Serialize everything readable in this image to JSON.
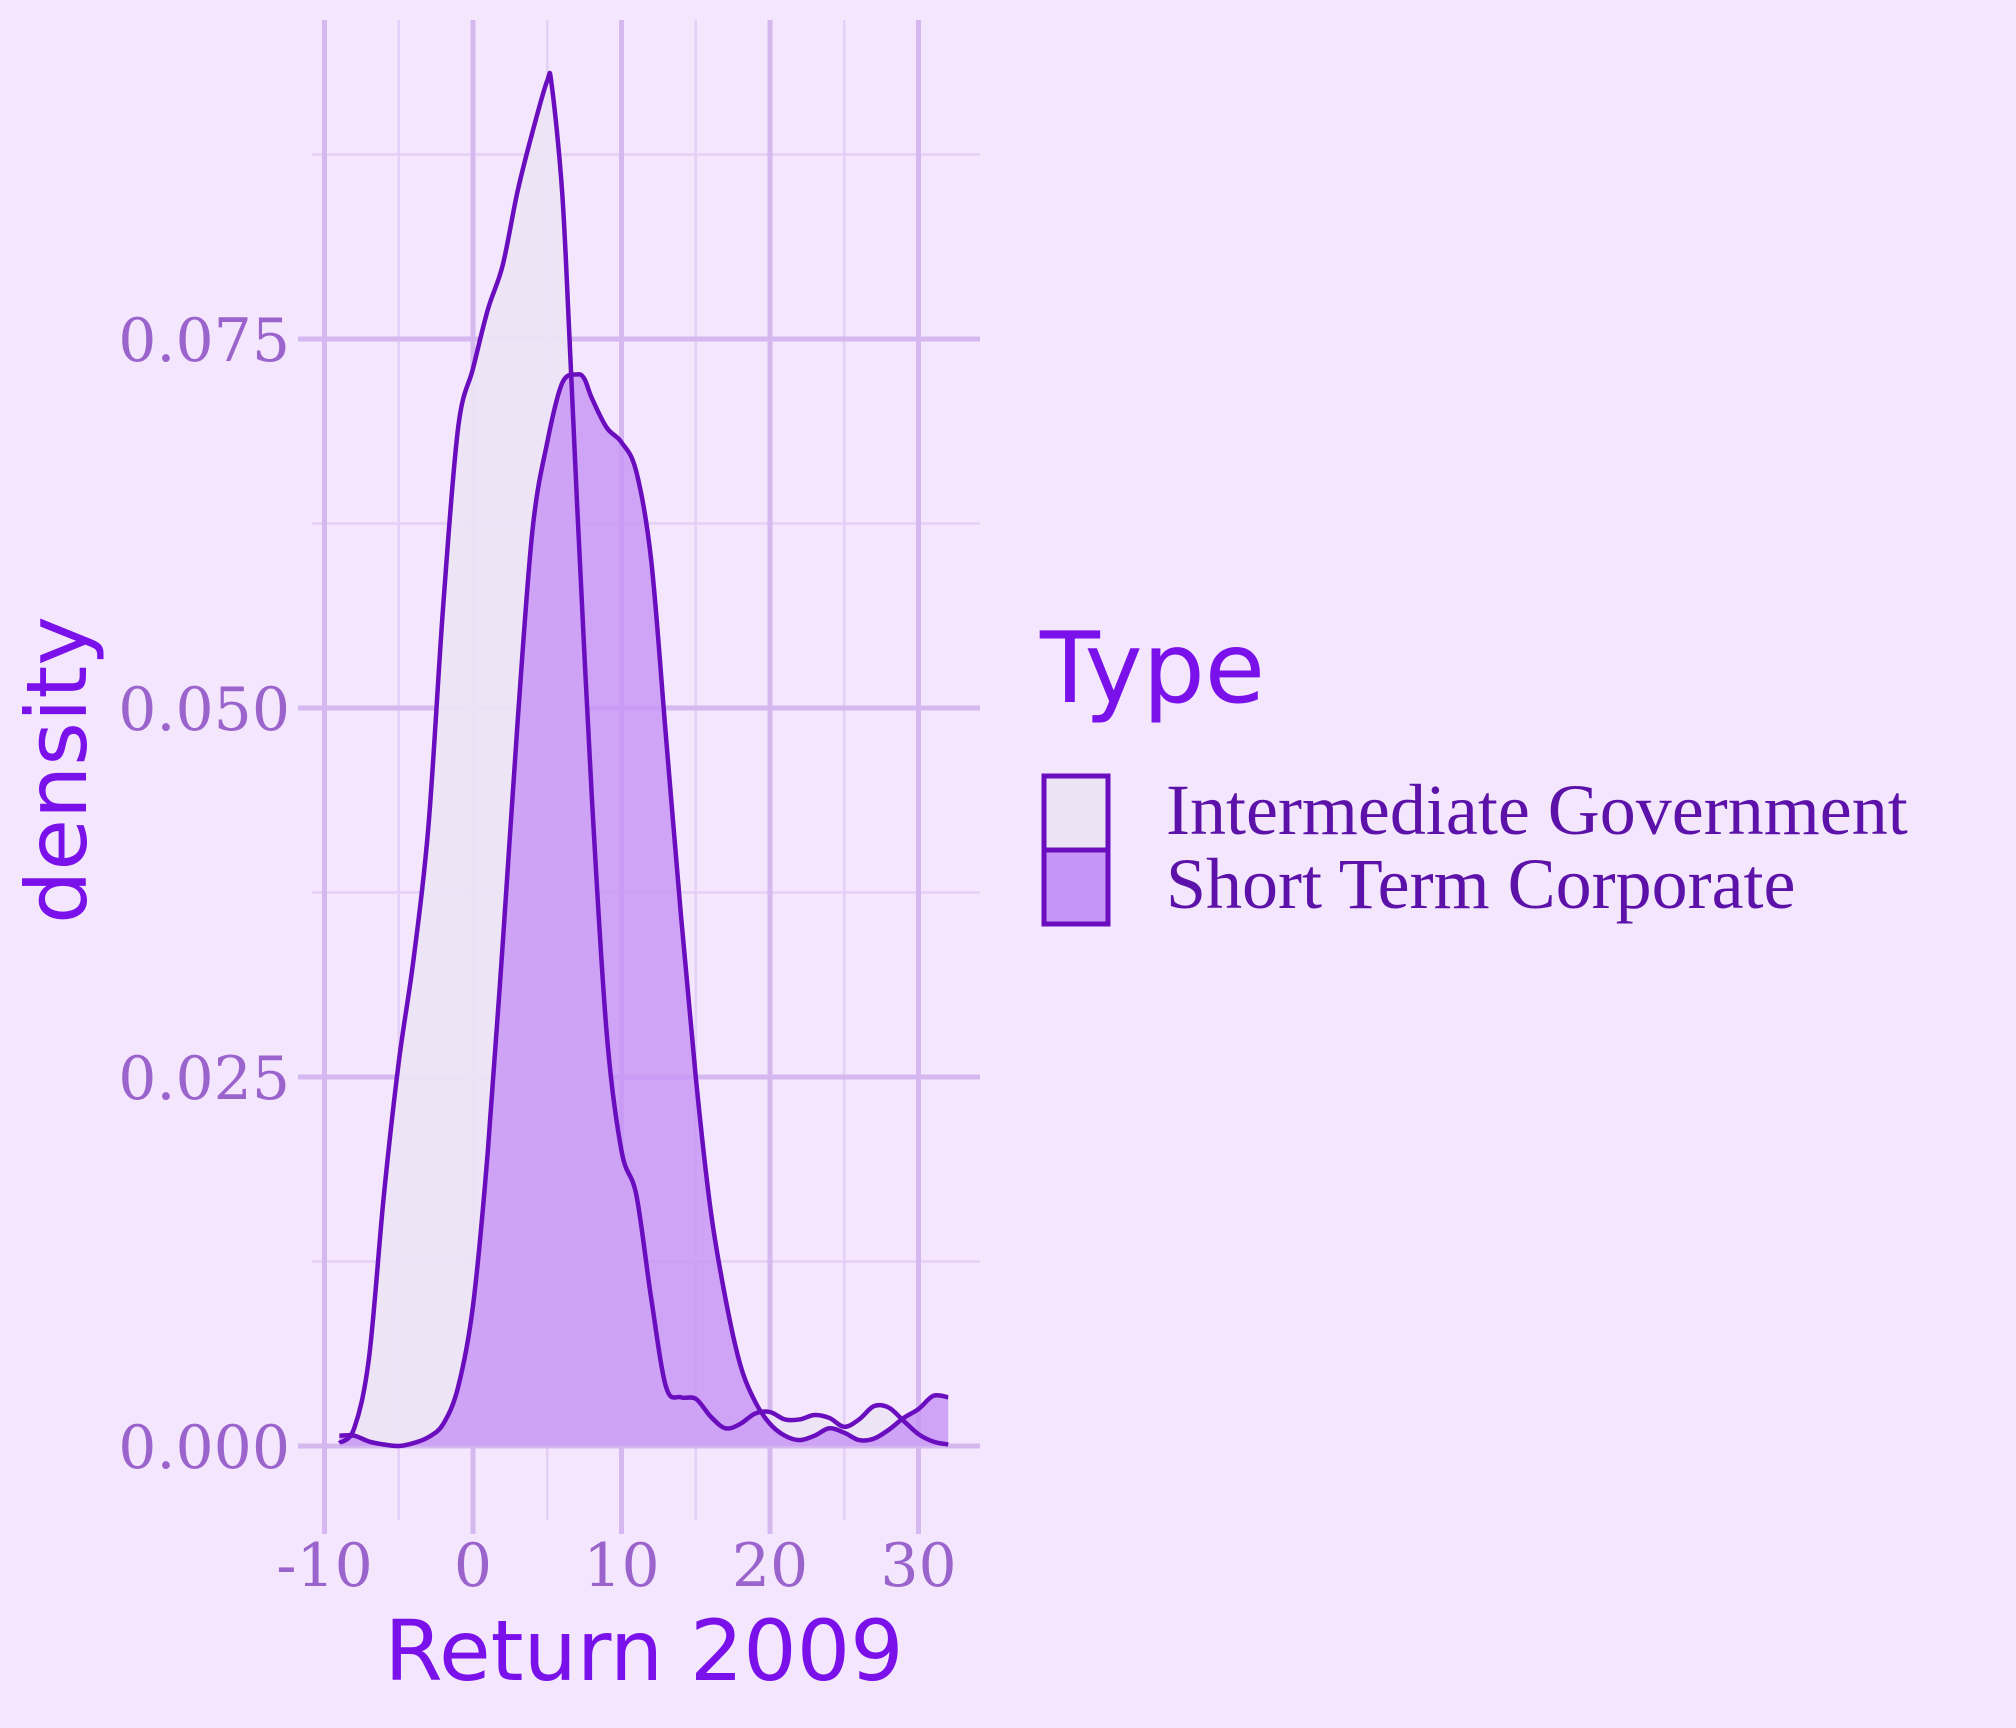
{
  "chart_data": {
    "type": "area",
    "title": "",
    "xlabel": "Return 2009",
    "ylabel": "density",
    "xlim": [
      -9,
      32
    ],
    "ylim": [
      0,
      0.095
    ],
    "x_ticks": [
      -10,
      0,
      10,
      20,
      30
    ],
    "x_tick_labels": [
      "-10",
      "0",
      "10",
      "20",
      "30"
    ],
    "y_ticks": [
      0,
      0.025,
      0.05,
      0.075
    ],
    "y_tick_labels": [
      "0.000",
      "0.025",
      "0.050",
      "0.075"
    ],
    "grid": true,
    "legend": {
      "title": "Type",
      "placement": "right"
    },
    "series": [
      {
        "name": "Intermediate Government",
        "fill": "#ece4f5",
        "stroke": "#6a0dbf",
        "x": [
          -9.0,
          -8.0,
          -7.0,
          -6.0,
          -5.0,
          -4.0,
          -3.0,
          -2.0,
          -1.0,
          0.0,
          1.0,
          2.0,
          3.0,
          4.0,
          5.0,
          5.3,
          6.0,
          6.5,
          7.0,
          8.0,
          9.0,
          10.0,
          11.0,
          12.0,
          13.0,
          14.0,
          15.0,
          16.0,
          17.0,
          18.0,
          19.0,
          20.0,
          21.0,
          22.0,
          23.0,
          24.0,
          25.0,
          26.0,
          27.0,
          28.0,
          29.0,
          30.0,
          31.0,
          32.0
        ],
        "y": [
          0.0002,
          0.0012,
          0.006,
          0.017,
          0.026,
          0.033,
          0.042,
          0.057,
          0.069,
          0.073,
          0.077,
          0.08,
          0.085,
          0.089,
          0.0925,
          0.0922,
          0.085,
          0.075,
          0.064,
          0.044,
          0.028,
          0.02,
          0.017,
          0.01,
          0.004,
          0.0033,
          0.0032,
          0.002,
          0.0012,
          0.0015,
          0.0022,
          0.0023,
          0.0018,
          0.0018,
          0.0021,
          0.0019,
          0.0013,
          0.0018,
          0.0027,
          0.0026,
          0.0017,
          0.0008,
          0.0003,
          0.0001
        ]
      },
      {
        "name": "Short Term Corporate",
        "fill": "#c795f5",
        "stroke": "#6a0dbf",
        "x": [
          -9.0,
          -8.0,
          -7.0,
          -6.0,
          -5.0,
          -4.0,
          -3.0,
          -2.0,
          -1.0,
          0.0,
          1.0,
          2.0,
          3.0,
          4.0,
          5.0,
          6.0,
          7.0,
          7.5,
          8.0,
          9.0,
          10.0,
          11.0,
          12.0,
          13.0,
          14.0,
          15.0,
          16.0,
          17.0,
          18.0,
          19.0,
          20.0,
          21.0,
          22.0,
          23.0,
          24.0,
          25.0,
          26.0,
          27.0,
          28.0,
          29.0,
          30.0,
          31.0,
          32.0
        ],
        "y": [
          0.0007,
          0.0007,
          0.0003,
          0.0001,
          0.0,
          0.0002,
          0.0006,
          0.0015,
          0.004,
          0.0095,
          0.02,
          0.034,
          0.049,
          0.062,
          0.068,
          0.072,
          0.0726,
          0.0723,
          0.071,
          0.069,
          0.068,
          0.066,
          0.06,
          0.048,
          0.036,
          0.025,
          0.016,
          0.01,
          0.0055,
          0.003,
          0.0015,
          0.0007,
          0.0004,
          0.0007,
          0.0012,
          0.0009,
          0.0004,
          0.0005,
          0.0011,
          0.0019,
          0.0025,
          0.0034,
          0.0033
        ]
      }
    ]
  }
}
